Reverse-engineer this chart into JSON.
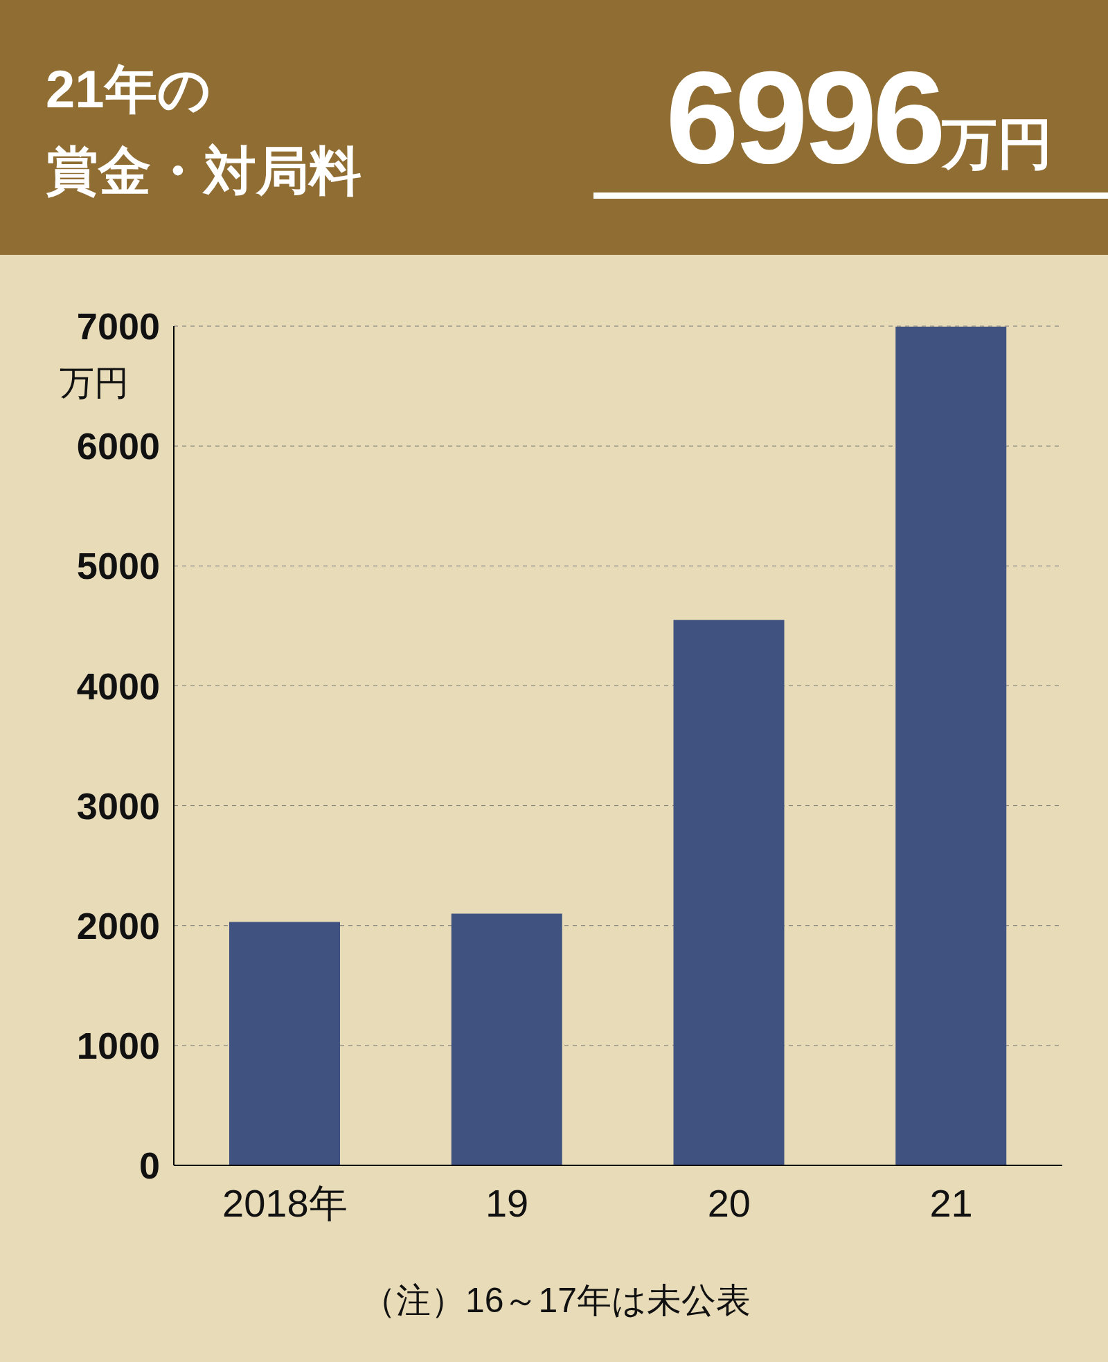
{
  "chart_data": {
    "type": "bar",
    "title": "21年の",
    "subtitle": "賞金・対局料",
    "categories": [
      "2018年",
      "19",
      "20",
      "21"
    ],
    "values": [
      2030,
      2100,
      4550,
      6996
    ],
    "color": "#3f5280",
    "ylabel": "万円",
    "ylim": [
      0,
      7000
    ],
    "yticks": [
      0,
      1000,
      2000,
      3000,
      4000,
      5000,
      6000,
      7000
    ],
    "grid": "y",
    "annotations": [
      "6996万円",
      "（注）16～17年は未公表"
    ]
  }
}
